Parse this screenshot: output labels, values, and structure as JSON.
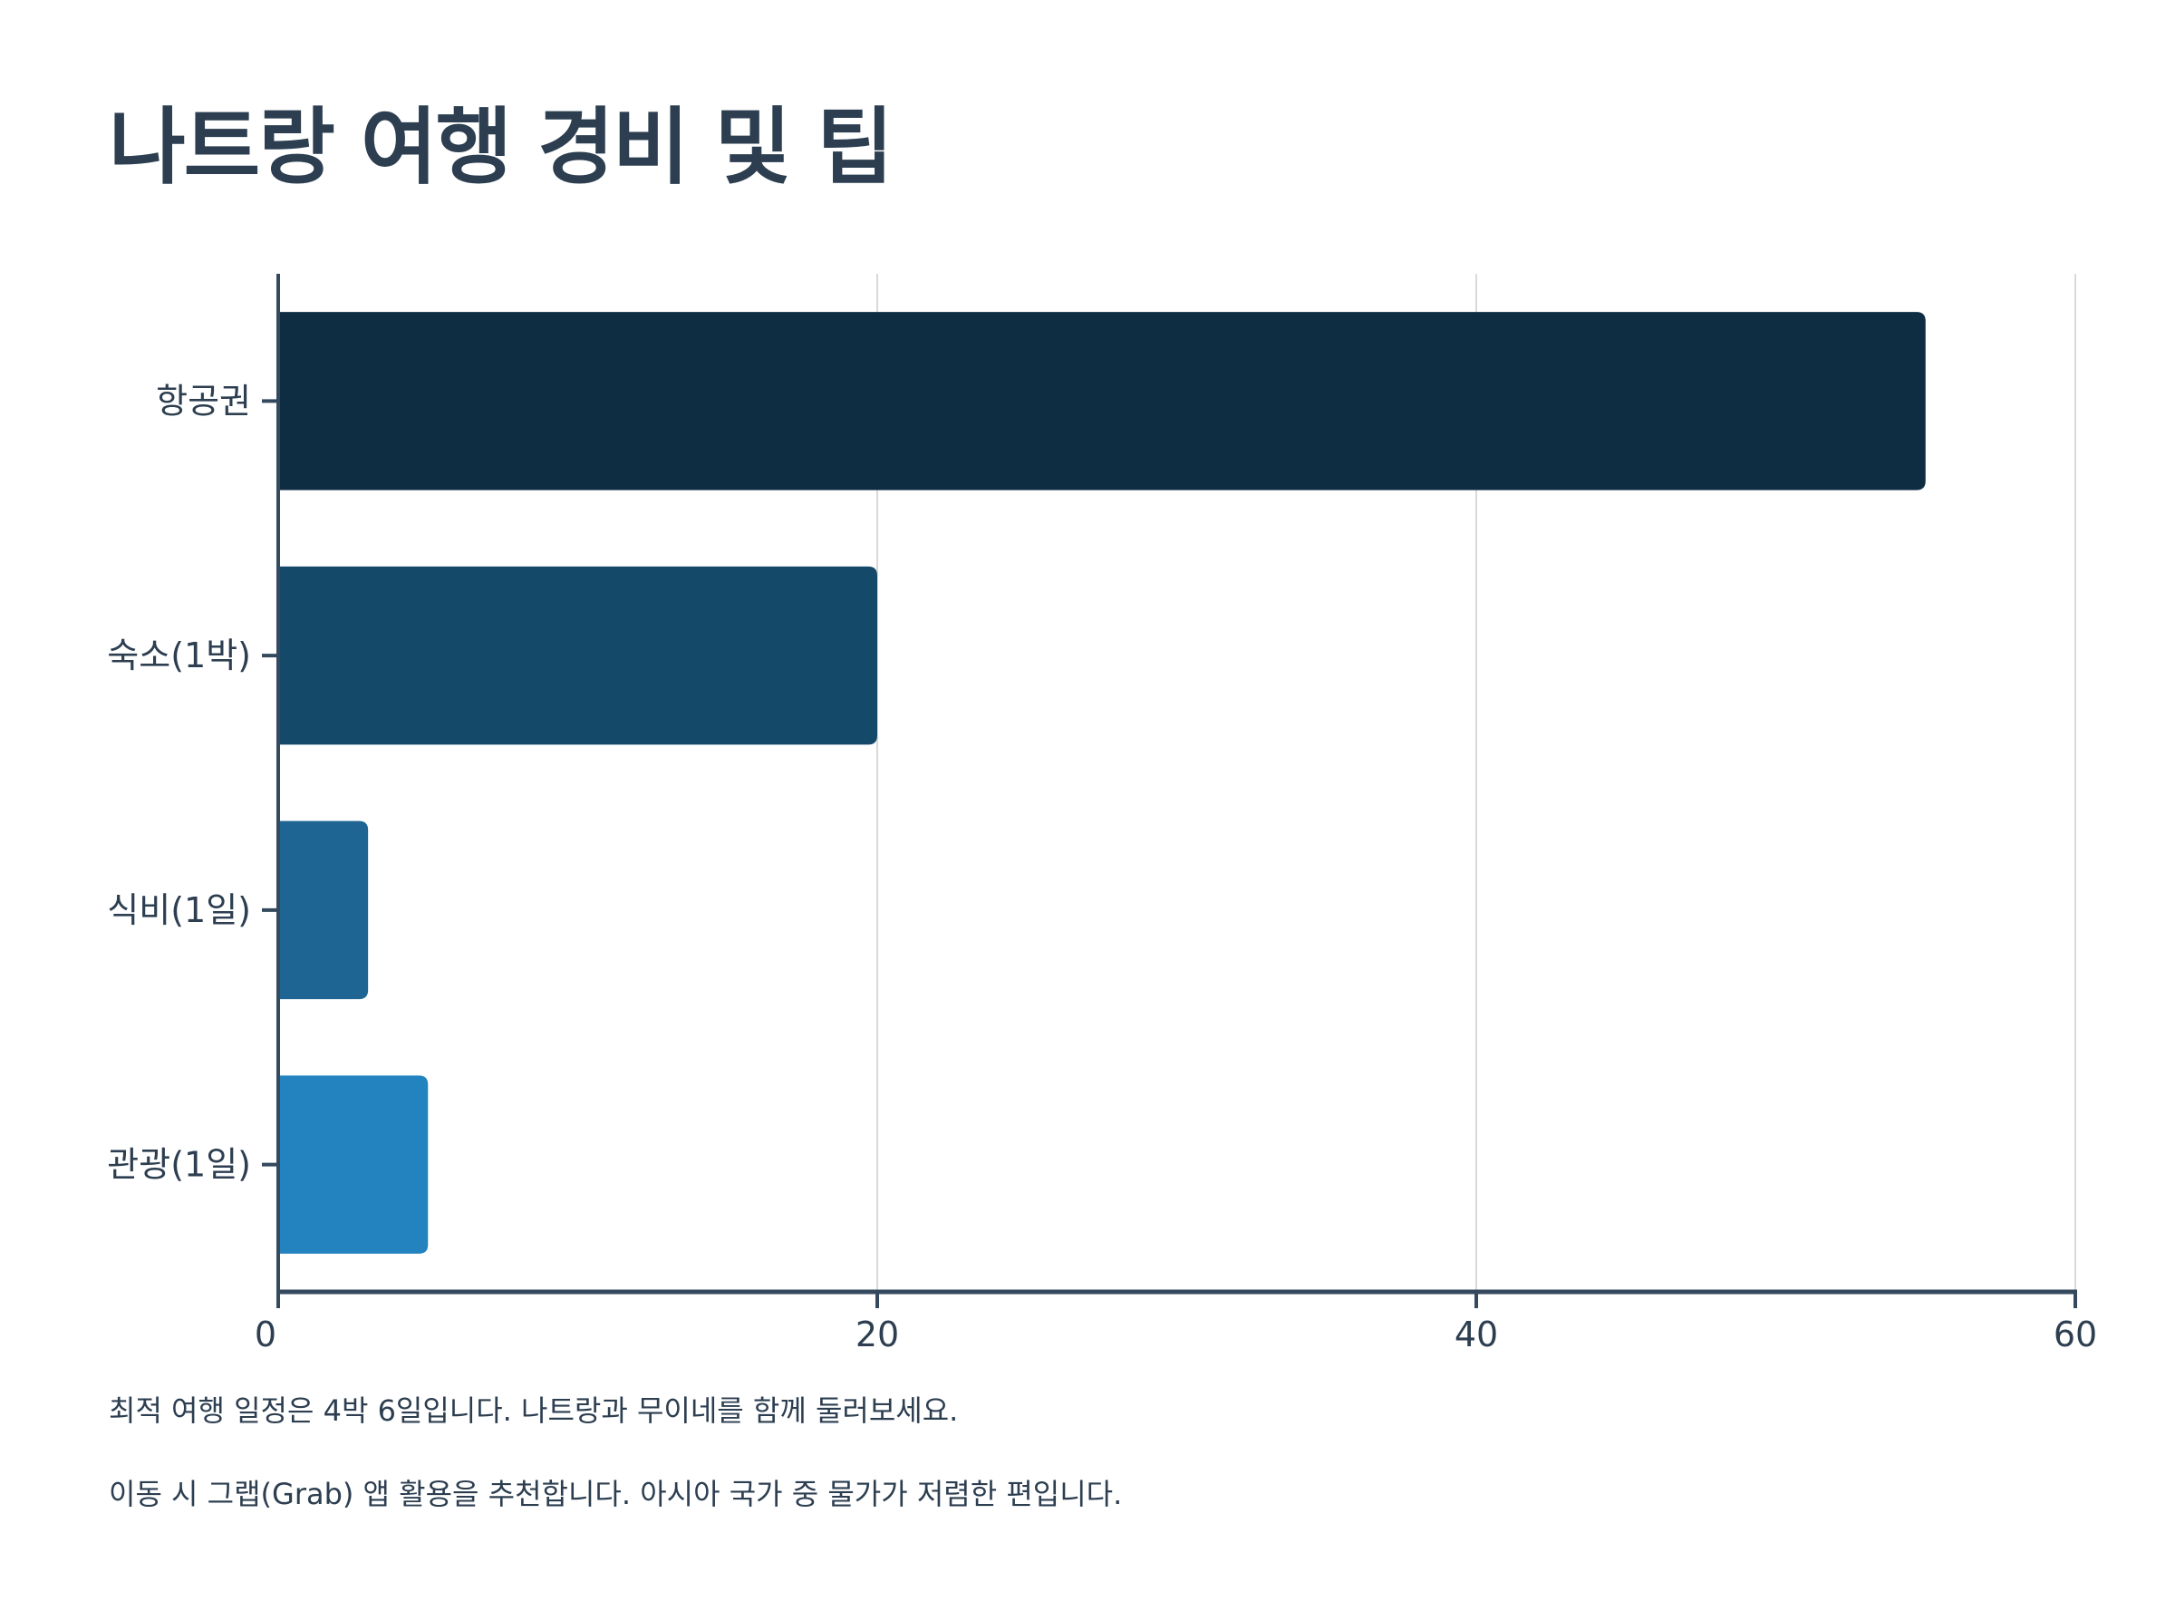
{
  "title": "나트랑 여행 경비 및 팁",
  "chart_data": {
    "type": "bar",
    "orientation": "horizontal",
    "categories": [
      "항공권",
      "숙소(1박)",
      "식비(1일)",
      "관광(1일)"
    ],
    "values": [
      55,
      20,
      3,
      5
    ],
    "colors": [
      "#0f2d42",
      "#15496a",
      "#1e6593",
      "#2383bf"
    ],
    "xlim": [
      0,
      60
    ],
    "xticks": [
      "0",
      "20",
      "40",
      "60"
    ],
    "grid": true,
    "legend": "none"
  },
  "notes": [
    "최적 여행 일정은 4박 6일입니다. 나트랑과 무이네를 함께 둘러보세요.",
    "이동 시 그랩(Grab) 앱 활용을 추천합니다. 아시아 국가 중 물가가 저렴한 편입니다."
  ],
  "colors": {
    "axis": "#34495e",
    "grid": "#d9d9d9",
    "text": "#2c3e50"
  }
}
